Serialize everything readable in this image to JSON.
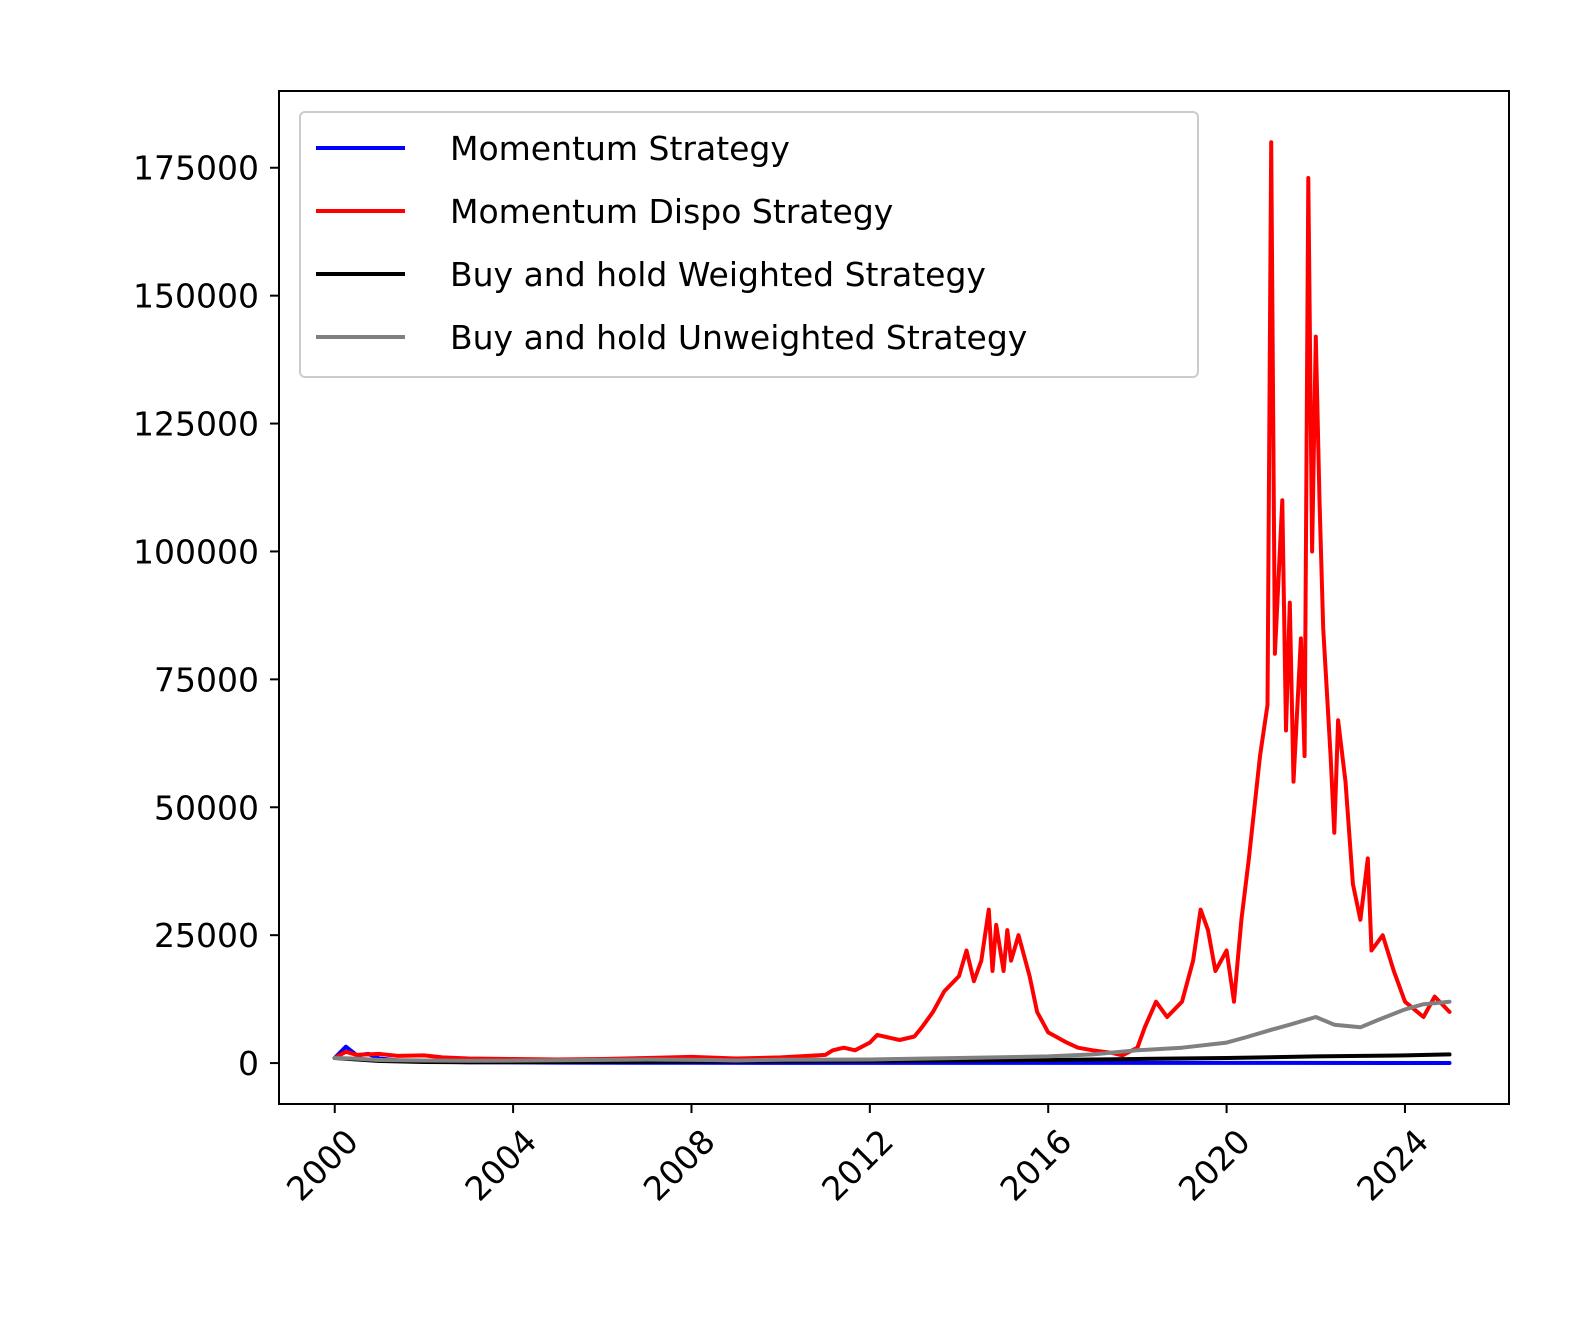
{
  "chart_data": {
    "type": "line",
    "title": "",
    "xlabel": "",
    "ylabel": "",
    "xlim": [
      "1998-10-01",
      "2026-05-01"
    ],
    "ylim": [
      -8000,
      190000
    ],
    "x_ticks": [
      "2000",
      "2004",
      "2008",
      "2012",
      "2016",
      "2020",
      "2024"
    ],
    "y_ticks": [
      0,
      25000,
      50000,
      75000,
      100000,
      125000,
      150000,
      175000
    ],
    "y_tick_labels": [
      "0",
      "25000",
      "50000",
      "75000",
      "100000",
      "125000",
      "150000",
      "175000"
    ],
    "grid": false,
    "legend_position": "upper-left",
    "series": [
      {
        "name": "Momentum Strategy",
        "color": "#0000ff",
        "points": [
          [
            "2000-01-01",
            1000
          ],
          [
            "2000-04-01",
            3200
          ],
          [
            "2000-07-01",
            1500
          ],
          [
            "2000-10-01",
            1800
          ],
          [
            "2001-01-01",
            900
          ],
          [
            "2001-06-01",
            500
          ],
          [
            "2002-01-01",
            300
          ],
          [
            "2003-01-01",
            150
          ],
          [
            "2005-01-01",
            100
          ],
          [
            "2008-01-01",
            60
          ],
          [
            "2012-01-01",
            40
          ],
          [
            "2016-01-01",
            30
          ],
          [
            "2020-01-01",
            25
          ],
          [
            "2025-01-01",
            20
          ]
        ]
      },
      {
        "name": "Momentum Dispo Strategy",
        "color": "#ff0000",
        "points": [
          [
            "2000-01-01",
            1000
          ],
          [
            "2000-04-01",
            2200
          ],
          [
            "2000-07-01",
            1600
          ],
          [
            "2001-01-01",
            1800
          ],
          [
            "2001-06-01",
            1400
          ],
          [
            "2002-01-01",
            1500
          ],
          [
            "2002-06-01",
            1100
          ],
          [
            "2003-01-01",
            900
          ],
          [
            "2004-01-01",
            800
          ],
          [
            "2005-01-01",
            700
          ],
          [
            "2006-01-01",
            800
          ],
          [
            "2007-01-01",
            1000
          ],
          [
            "2008-01-01",
            1200
          ],
          [
            "2009-01-01",
            900
          ],
          [
            "2010-01-01",
            1100
          ],
          [
            "2010-06-01",
            1300
          ],
          [
            "2011-01-01",
            1600
          ],
          [
            "2011-03-01",
            2500
          ],
          [
            "2011-06-01",
            3000
          ],
          [
            "2011-09-01",
            2500
          ],
          [
            "2012-01-01",
            4000
          ],
          [
            "2012-03-01",
            5500
          ],
          [
            "2012-06-01",
            5000
          ],
          [
            "2012-09-01",
            4500
          ],
          [
            "2013-01-01",
            5200
          ],
          [
            "2013-03-01",
            7000
          ],
          [
            "2013-06-01",
            10000
          ],
          [
            "2013-09-01",
            14000
          ],
          [
            "2014-01-01",
            17000
          ],
          [
            "2014-03-01",
            22000
          ],
          [
            "2014-05-01",
            16000
          ],
          [
            "2014-07-01",
            20000
          ],
          [
            "2014-09-01",
            30000
          ],
          [
            "2014-10-01",
            18000
          ],
          [
            "2014-11-01",
            27000
          ],
          [
            "2015-01-01",
            18000
          ],
          [
            "2015-02-01",
            26000
          ],
          [
            "2015-03-01",
            20000
          ],
          [
            "2015-05-01",
            25000
          ],
          [
            "2015-08-01",
            17000
          ],
          [
            "2015-10-01",
            10000
          ],
          [
            "2016-01-01",
            6000
          ],
          [
            "2016-06-01",
            4000
          ],
          [
            "2016-09-01",
            3000
          ],
          [
            "2017-01-01",
            2500
          ],
          [
            "2017-06-01",
            2000
          ],
          [
            "2017-09-01",
            1500
          ],
          [
            "2018-01-01",
            3000
          ],
          [
            "2018-03-01",
            7000
          ],
          [
            "2018-06-01",
            12000
          ],
          [
            "2018-09-01",
            9000
          ],
          [
            "2019-01-01",
            12000
          ],
          [
            "2019-04-01",
            20000
          ],
          [
            "2019-06-01",
            30000
          ],
          [
            "2019-08-01",
            26000
          ],
          [
            "2019-10-01",
            18000
          ],
          [
            "2020-01-01",
            22000
          ],
          [
            "2020-03-01",
            12000
          ],
          [
            "2020-05-01",
            28000
          ],
          [
            "2020-07-01",
            40000
          ],
          [
            "2020-10-01",
            60000
          ],
          [
            "2020-12-01",
            70000
          ],
          [
            "2021-01-01",
            180000
          ],
          [
            "2021-02-01",
            80000
          ],
          [
            "2021-04-01",
            110000
          ],
          [
            "2021-05-01",
            65000
          ],
          [
            "2021-06-01",
            90000
          ],
          [
            "2021-07-01",
            55000
          ],
          [
            "2021-09-01",
            83000
          ],
          [
            "2021-10-01",
            60000
          ],
          [
            "2021-11-01",
            173000
          ],
          [
            "2021-12-01",
            100000
          ],
          [
            "2022-01-01",
            142000
          ],
          [
            "2022-02-01",
            110000
          ],
          [
            "2022-03-01",
            85000
          ],
          [
            "2022-05-01",
            60000
          ],
          [
            "2022-06-01",
            45000
          ],
          [
            "2022-07-01",
            67000
          ],
          [
            "2022-09-01",
            55000
          ],
          [
            "2022-11-01",
            35000
          ],
          [
            "2023-01-01",
            28000
          ],
          [
            "2023-03-01",
            40000
          ],
          [
            "2023-04-01",
            22000
          ],
          [
            "2023-07-01",
            25000
          ],
          [
            "2023-10-01",
            18000
          ],
          [
            "2024-01-01",
            12000
          ],
          [
            "2024-06-01",
            9000
          ],
          [
            "2024-09-01",
            13000
          ],
          [
            "2025-01-01",
            10000
          ]
        ]
      },
      {
        "name": "Buy and hold Weighted Strategy",
        "color": "#000000",
        "points": [
          [
            "2000-01-01",
            1000
          ],
          [
            "2001-01-01",
            400
          ],
          [
            "2002-01-01",
            200
          ],
          [
            "2003-01-01",
            150
          ],
          [
            "2005-01-01",
            200
          ],
          [
            "2008-01-01",
            300
          ],
          [
            "2010-01-01",
            350
          ],
          [
            "2012-01-01",
            400
          ],
          [
            "2014-01-01",
            500
          ],
          [
            "2016-01-01",
            600
          ],
          [
            "2018-01-01",
            800
          ],
          [
            "2020-01-01",
            1000
          ],
          [
            "2022-01-01",
            1300
          ],
          [
            "2024-01-01",
            1500
          ],
          [
            "2025-01-01",
            1700
          ]
        ]
      },
      {
        "name": "Buy and hold Unweighted Strategy",
        "color": "#808080",
        "points": [
          [
            "2000-01-01",
            1000
          ],
          [
            "2000-06-01",
            900
          ],
          [
            "2001-01-01",
            600
          ],
          [
            "2002-01-01",
            500
          ],
          [
            "2003-01-01",
            450
          ],
          [
            "2005-01-01",
            550
          ],
          [
            "2007-01-01",
            700
          ],
          [
            "2008-06-01",
            600
          ],
          [
            "2009-01-01",
            500
          ],
          [
            "2010-01-01",
            650
          ],
          [
            "2012-01-01",
            700
          ],
          [
            "2014-01-01",
            1000
          ],
          [
            "2016-01-01",
            1300
          ],
          [
            "2017-01-01",
            1700
          ],
          [
            "2018-01-01",
            2500
          ],
          [
            "2019-01-01",
            3000
          ],
          [
            "2020-01-01",
            4000
          ],
          [
            "2020-06-01",
            5000
          ],
          [
            "2021-01-01",
            6500
          ],
          [
            "2021-06-01",
            7500
          ],
          [
            "2022-01-01",
            9000
          ],
          [
            "2022-06-01",
            7500
          ],
          [
            "2023-01-01",
            7000
          ],
          [
            "2023-06-01",
            8500
          ],
          [
            "2024-01-01",
            10500
          ],
          [
            "2024-06-01",
            11500
          ],
          [
            "2025-01-01",
            12000
          ]
        ]
      }
    ]
  }
}
